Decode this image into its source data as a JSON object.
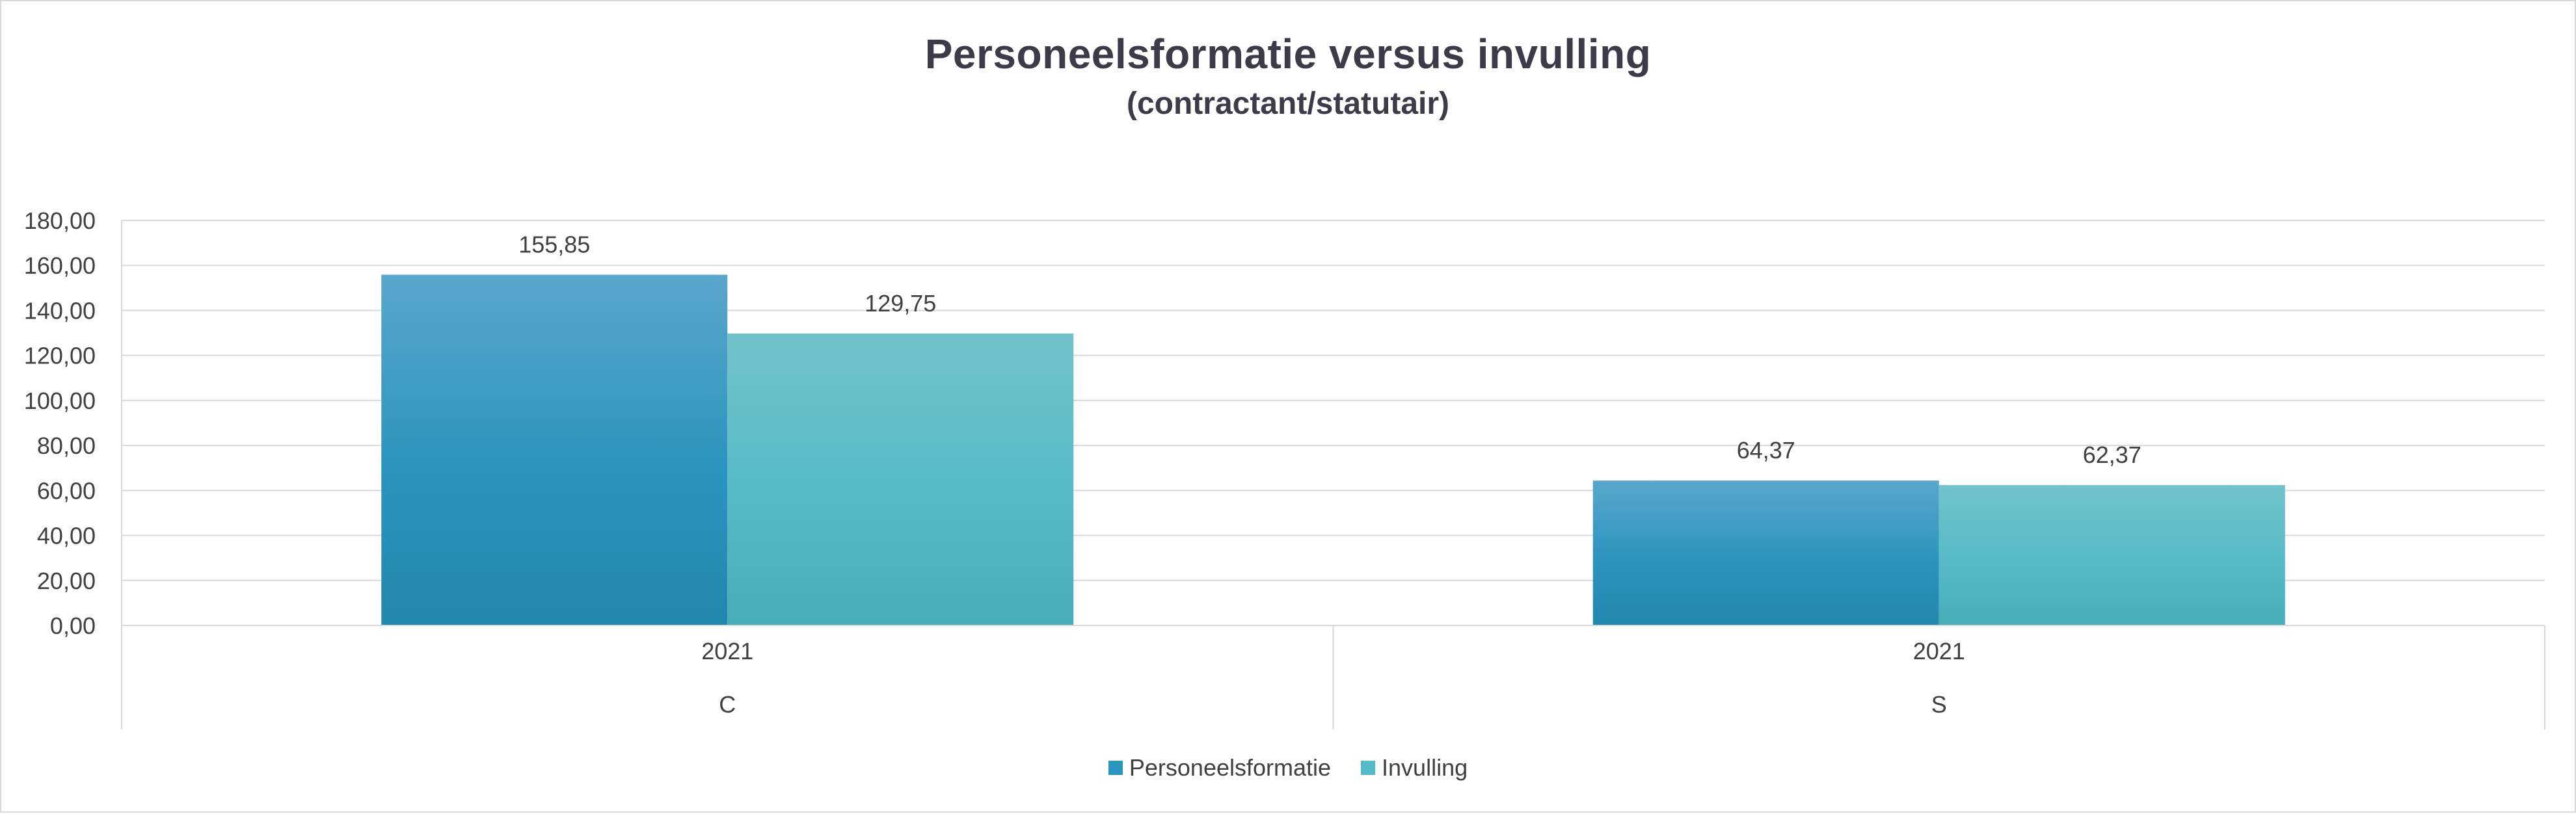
{
  "chart_data": {
    "type": "bar",
    "title": "Personeelsformatie versus invulling",
    "subtitle": "(contractant/statutair)",
    "xlabel": "",
    "ylabel": "",
    "ylim": [
      0,
      180
    ],
    "y_ticks": [
      "0,00",
      "20,00",
      "40,00",
      "60,00",
      "80,00",
      "100,00",
      "120,00",
      "140,00",
      "160,00",
      "180,00"
    ],
    "grid": true,
    "legend_position": "bottom",
    "categories": [
      {
        "year": "2021",
        "group": "C"
      },
      {
        "year": "2021",
        "group": "S"
      }
    ],
    "series": [
      {
        "name": "Personeelsformatie",
        "color": "#2b94bf",
        "values": [
          155.85,
          64.37
        ],
        "labels": [
          "155,85",
          "64,37"
        ]
      },
      {
        "name": "Invulling",
        "color": "#55bac7",
        "values": [
          129.75,
          62.37
        ],
        "labels": [
          "129,75",
          "62,37"
        ]
      }
    ]
  },
  "colors": {
    "text": "#404040",
    "grid": "#d9d9d9",
    "title": "#3b3b4a"
  }
}
